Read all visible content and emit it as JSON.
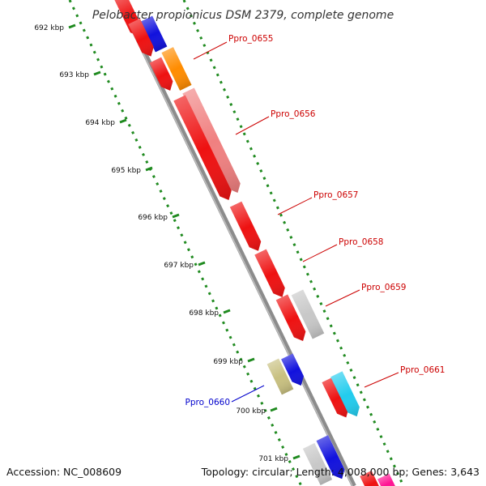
{
  "title": "Pelobacter propionicus DSM 2379, complete genome",
  "footer": {
    "accession": "Accession: NC_008609",
    "summary": "Topology: circular; Length: 4,008,000 bp; Genes: 3,643"
  },
  "ticks": [
    "692 kbp",
    "693 kbp",
    "694 kbp",
    "695 kbp",
    "696 kbp",
    "697 kbp",
    "698 kbp",
    "699 kbp",
    "700 kbp",
    "701 kbp"
  ],
  "gene_labels": [
    {
      "text": "Ppro_0655",
      "color": "#cc0000"
    },
    {
      "text": "Ppro_0656",
      "color": "#cc0000"
    },
    {
      "text": "Ppro_0657",
      "color": "#cc0000"
    },
    {
      "text": "Ppro_0658",
      "color": "#cc0000"
    },
    {
      "text": "Ppro_0659",
      "color": "#cc0000"
    },
    {
      "text": "Ppro_0660",
      "color": "#0000cc"
    },
    {
      "text": "Ppro_0661",
      "color": "#cc0000"
    }
  ],
  "colors": {
    "backbone": "#8c8c8c",
    "tick_marks": "#1f8a1f",
    "red": "#ee1111",
    "blue": "#1111dd",
    "orange": "#ff8c00",
    "salmon": "#f08080",
    "gray": "#c8c8c8",
    "olive": "#c8c080",
    "cyan": "#22ccee",
    "magenta": "#ff1493"
  }
}
